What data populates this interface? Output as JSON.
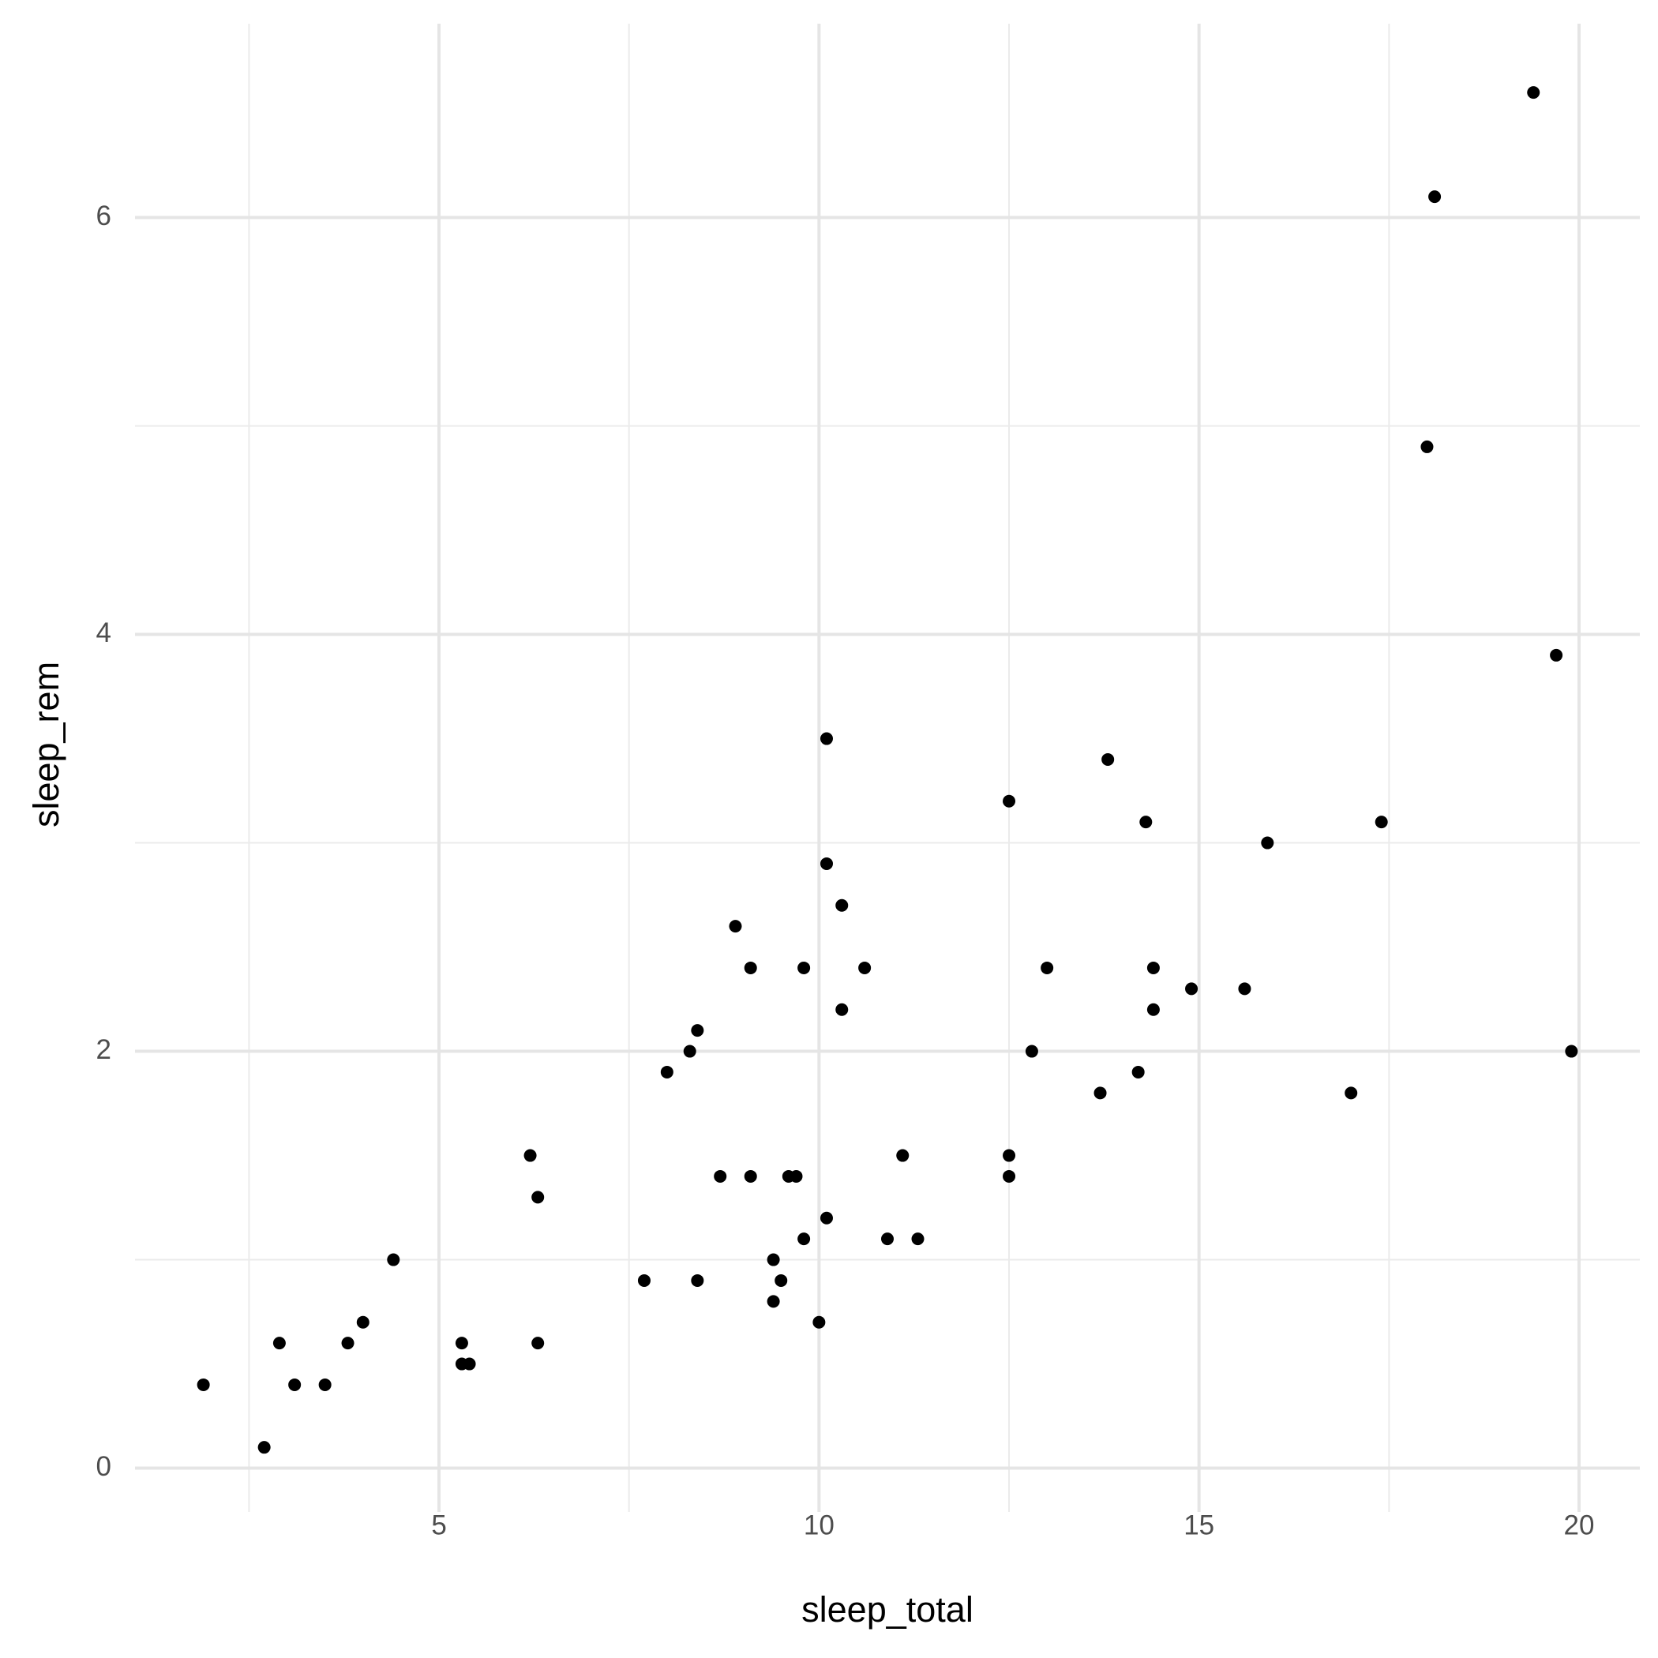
{
  "chart_data": {
    "type": "scatter",
    "x_label": "sleep_total",
    "y_label": "sleep_rem",
    "x": [
      19.4,
      18.1,
      18.0,
      19.7,
      10.1,
      13.8,
      12.5,
      14.3,
      17.4,
      15.9,
      10.1,
      10.3,
      8.9,
      9.1,
      9.8,
      10.6,
      13.0,
      14.4,
      14.9,
      15.6,
      10.3,
      14.4,
      8.4,
      8.3,
      12.8,
      19.9,
      8.0,
      14.2,
      13.7,
      17.0,
      6.2,
      11.1,
      12.5,
      8.7,
      9.1,
      9.6,
      9.7,
      12.5,
      6.3,
      10.1,
      9.8,
      10.9,
      11.3,
      4.4,
      9.4,
      7.7,
      8.4,
      9.5,
      9.4,
      4.0,
      10.0,
      2.9,
      3.8,
      5.3,
      6.3,
      5.3,
      5.4,
      1.9,
      3.1,
      3.5,
      2.7
    ],
    "values": [
      6.6,
      6.1,
      4.9,
      3.9,
      3.5,
      3.4,
      3.2,
      3.1,
      3.1,
      3.0,
      2.9,
      2.7,
      2.6,
      2.4,
      2.4,
      2.4,
      2.4,
      2.4,
      2.3,
      2.3,
      2.2,
      2.2,
      2.1,
      2.0,
      2.0,
      2.0,
      1.9,
      1.9,
      1.8,
      1.8,
      1.5,
      1.5,
      1.5,
      1.4,
      1.4,
      1.4,
      1.4,
      1.4,
      1.3,
      1.2,
      1.1,
      1.1,
      1.1,
      1.0,
      1.0,
      0.9,
      0.9,
      0.9,
      0.8,
      0.7,
      0.7,
      0.6,
      0.6,
      0.6,
      0.6,
      0.5,
      0.5,
      0.4,
      0.4,
      0.4,
      0.1
    ],
    "color": "#000000",
    "xlim": [
      1.0,
      20.8
    ],
    "ylim": [
      -0.21,
      6.93
    ],
    "xticks": [
      5,
      10,
      15,
      20
    ],
    "yticks": [
      0,
      2,
      4,
      6
    ],
    "x_minor_grid": [
      2.5,
      7.5,
      12.5,
      17.5
    ],
    "y_minor_grid": [
      1,
      3,
      5
    ],
    "grid": true
  }
}
